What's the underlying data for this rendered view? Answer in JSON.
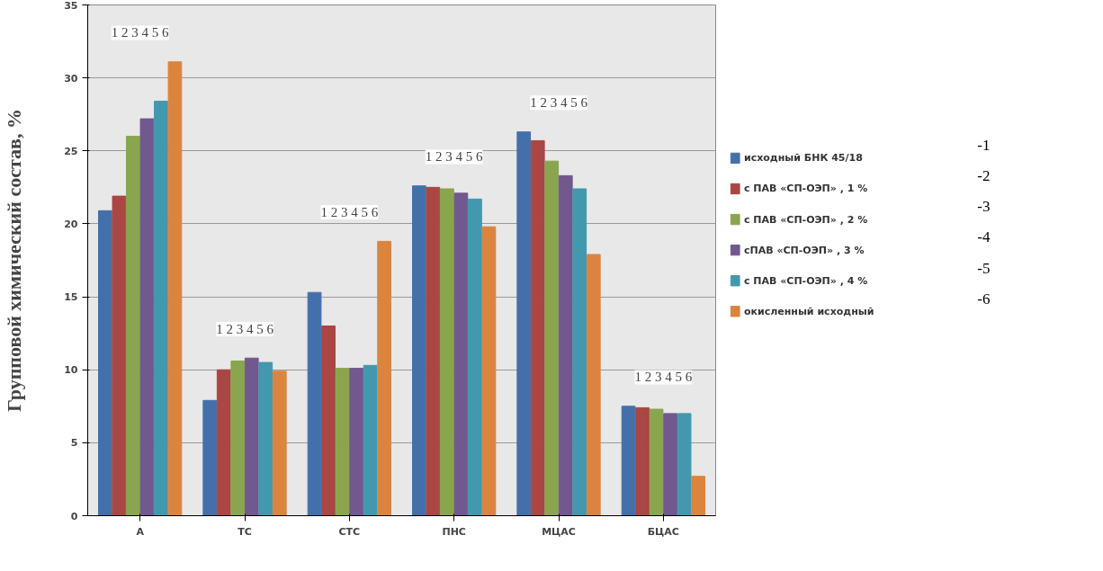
{
  "chart_data": {
    "type": "bar",
    "ylabel": "Групповой химический состав, %",
    "categories": [
      "А",
      "ТС",
      "СТС",
      "ПНС",
      "МЦАС",
      "БЦАС"
    ],
    "series": [
      {
        "name": "исходный БНК 45/18",
        "color": "#4470aa",
        "values": [
          20.9,
          7.9,
          15.3,
          22.6,
          26.3,
          7.5
        ]
      },
      {
        "name": "с ПАВ «СП-ОЭП» , 1 %",
        "color": "#aa4643",
        "values": [
          21.9,
          10.0,
          13.0,
          22.5,
          25.7,
          7.4
        ]
      },
      {
        "name": "с ПАВ «СП-ОЭП» , 2 %",
        "color": "#89a54e",
        "values": [
          26.0,
          10.6,
          10.1,
          22.4,
          24.3,
          7.3
        ]
      },
      {
        "name": "сПАВ «СП-ОЭП» , 3 %",
        "color": "#71588f",
        "values": [
          27.2,
          10.8,
          10.1,
          22.1,
          23.3,
          7.0
        ]
      },
      {
        "name": "с ПАВ «СП-ОЭП» , 4 %",
        "color": "#4198af",
        "values": [
          28.4,
          10.5,
          10.3,
          21.7,
          22.4,
          7.0
        ]
      },
      {
        "name": "окисленный исходный",
        "color": "#db843d",
        "values": [
          31.1,
          9.9,
          18.8,
          19.8,
          17.9,
          2.7
        ]
      }
    ],
    "ylim": [
      0,
      35
    ],
    "yticks": [
      0,
      5,
      10,
      15,
      20,
      25,
      30,
      35
    ],
    "grid": "y",
    "legend": "right",
    "annotations": [
      "1 2 3 4 5 6",
      "1 2 3 4 5 6",
      "1 2 3 4 5 6",
      "1 2 3 4 5 6",
      "1 2 3 4 5 6",
      "1 2 3 4 5 6",
      "-1",
      "-2",
      "-3",
      "-4",
      "-5",
      "-6"
    ]
  }
}
